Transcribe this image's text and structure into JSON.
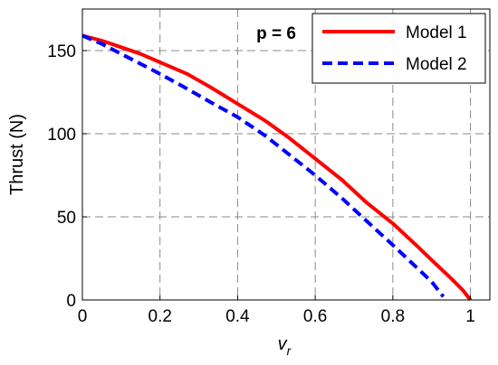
{
  "chart_data": {
    "type": "line",
    "xlabel": "v",
    "xlabel_sub": "r",
    "ylabel": "Thrust (N)",
    "xlim": [
      0,
      1.05
    ],
    "ylim": [
      0,
      175
    ],
    "xticks": [
      0,
      0.2,
      0.4,
      0.6,
      0.8,
      1
    ],
    "xtick_labels": [
      "0",
      "0.2",
      "0.4",
      "0.6",
      "0.8",
      "1"
    ],
    "yticks": [
      0,
      50,
      100,
      150
    ],
    "ytick_labels": [
      "0",
      "50",
      "100",
      "150"
    ],
    "grid": true,
    "legend_position": "top-right",
    "annotation": "p = 6",
    "series": [
      {
        "name": "Model 1",
        "color": "#ff0000",
        "style": "solid",
        "x": [
          0,
          0.05,
          0.1,
          0.15,
          0.2,
          0.27,
          0.33,
          0.4,
          0.47,
          0.53,
          0.6,
          0.67,
          0.73,
          0.8,
          0.86,
          0.9,
          0.95,
          0.98,
          1.0
        ],
        "y": [
          159,
          156,
          152,
          148,
          143,
          136,
          128,
          118,
          108,
          98,
          85,
          72,
          59,
          46,
          33,
          24,
          13,
          6,
          0
        ]
      },
      {
        "name": "Model 2",
        "color": "#0000ff",
        "style": "dashed",
        "x": [
          0,
          0.05,
          0.1,
          0.15,
          0.2,
          0.27,
          0.33,
          0.4,
          0.47,
          0.53,
          0.6,
          0.67,
          0.73,
          0.8,
          0.85,
          0.9,
          0.93
        ],
        "y": [
          159,
          154,
          148,
          142,
          136,
          127,
          119,
          110,
          99,
          88,
          75,
          61,
          48,
          33,
          22,
          11,
          2
        ]
      }
    ]
  }
}
